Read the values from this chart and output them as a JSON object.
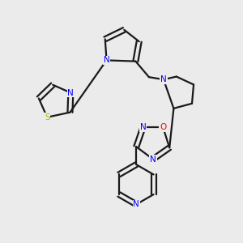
{
  "background_color": "#ebebeb",
  "bond_color": "#1a1a1a",
  "N_color": "#0000ff",
  "O_color": "#ff0000",
  "S_color": "#b8b800",
  "figsize": [
    3.0,
    3.0
  ],
  "dpi": 100,
  "xlim": [
    0,
    10
  ],
  "ylim": [
    0,
    10
  ]
}
